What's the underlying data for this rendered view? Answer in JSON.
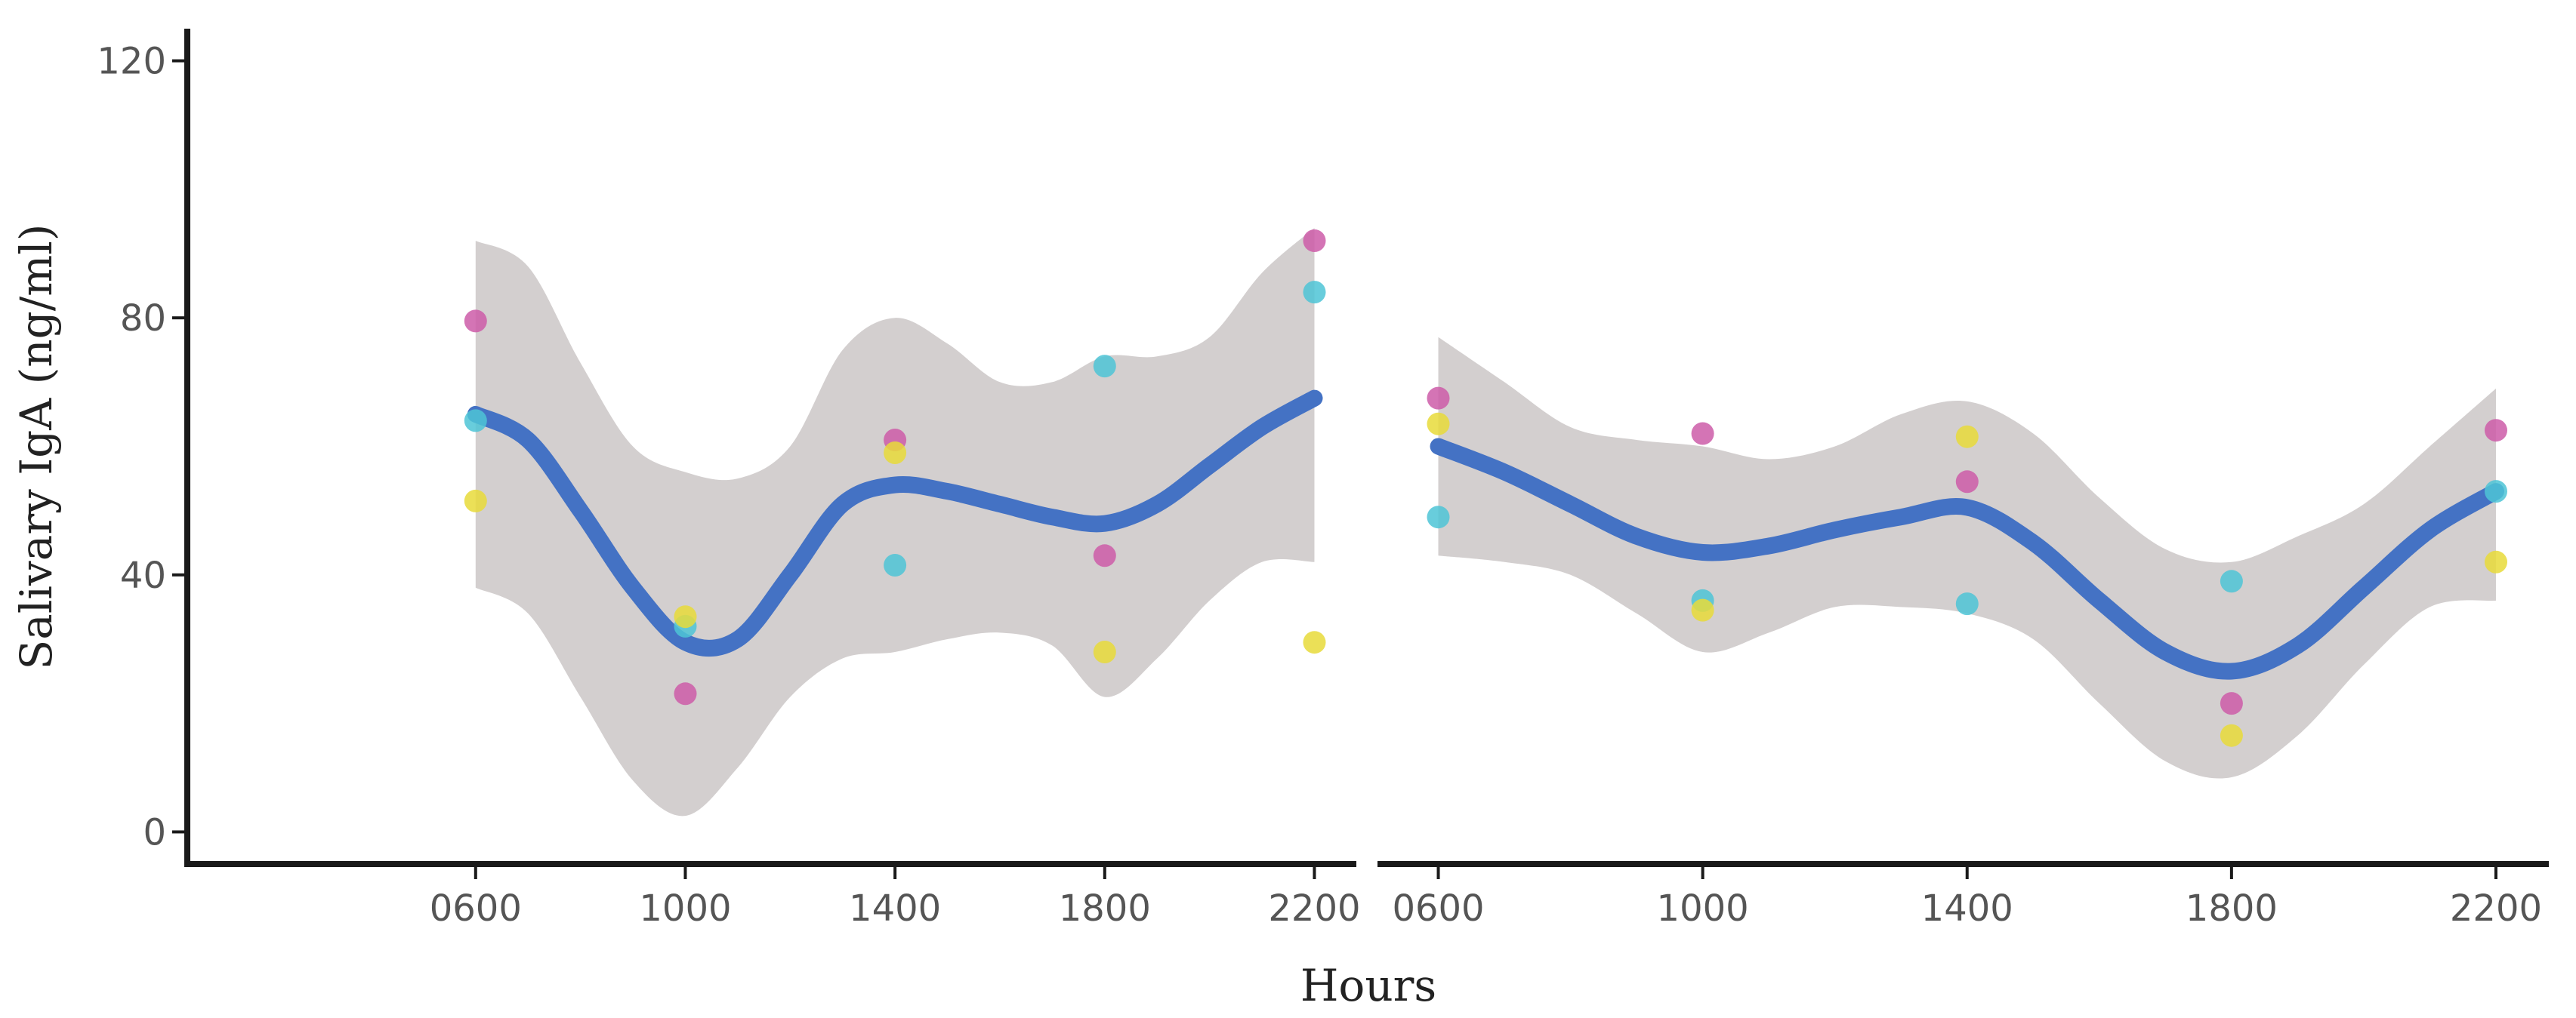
{
  "colors": {
    "smooth_line": "#4472C4",
    "ribbon": "#D3CFCF",
    "axis": "#1A1A1A",
    "group_magenta": "#CC5CA8",
    "group_cyan": "#4EC4D6",
    "group_yellow": "#E8DB3A"
  },
  "chart_data": [
    {
      "type": "scatter",
      "panel": "left",
      "x_tick_labels": [
        "0600",
        "1000",
        "1400",
        "1800",
        "2200"
      ],
      "y_ticks": [
        0,
        40,
        80,
        120
      ],
      "y_tick_labels": [
        "0",
        "40",
        "80",
        "120"
      ],
      "xlabel": "Hours",
      "ylabel": "Salivary IgA (ng/ml)",
      "ylim": [
        -5,
        125
      ],
      "xlim": [
        0.5,
        22.8
      ],
      "grid": false,
      "series": [
        {
          "color": "#CC5CA8",
          "points": [
            {
              "x": 6,
              "y": 79.5
            },
            {
              "x": 10,
              "y": 21.5
            },
            {
              "x": 14,
              "y": 61
            },
            {
              "x": 18,
              "y": 43
            },
            {
              "x": 22,
              "y": 92
            }
          ]
        },
        {
          "color": "#4EC4D6",
          "points": [
            {
              "x": 6,
              "y": 64
            },
            {
              "x": 10,
              "y": 32
            },
            {
              "x": 14,
              "y": 41.5
            },
            {
              "x": 18,
              "y": 72.5
            },
            {
              "x": 22,
              "y": 84
            }
          ]
        },
        {
          "color": "#E8DB3A",
          "points": [
            {
              "x": 6,
              "y": 51.5
            },
            {
              "x": 10,
              "y": 33.5
            },
            {
              "x": 14,
              "y": 59
            },
            {
              "x": 18,
              "y": 28
            },
            {
              "x": 22,
              "y": 29.5
            }
          ]
        }
      ],
      "smooth": {
        "x": [
          6,
          7,
          8,
          9,
          10,
          11,
          12,
          13,
          14,
          15,
          16,
          17,
          18,
          19,
          20,
          21,
          22
        ],
        "y": [
          65,
          61,
          50,
          38,
          29.5,
          30,
          40,
          51,
          54,
          53,
          51,
          49,
          48,
          51,
          57,
          63,
          67.5
        ],
        "lower": [
          38,
          34,
          21,
          8,
          2.5,
          10,
          21,
          27,
          28,
          30,
          31,
          29,
          21,
          27,
          36,
          42,
          42
        ],
        "upper": [
          92,
          88,
          73,
          60,
          56,
          55,
          60,
          75,
          80,
          76,
          70,
          70,
          74,
          74,
          77,
          87,
          94
        ]
      }
    },
    {
      "type": "scatter",
      "panel": "right",
      "x_tick_labels": [
        "0600",
        "1000",
        "1400",
        "1800",
        "2200"
      ],
      "xlabel": "Hours",
      "ylim": [
        -5,
        125
      ],
      "xlim": [
        5.08,
        22.8
      ],
      "grid": false,
      "series": [
        {
          "color": "#CC5CA8",
          "points": [
            {
              "x": 6,
              "y": 67.5
            },
            {
              "x": 10,
              "y": 62
            },
            {
              "x": 14,
              "y": 54.5
            },
            {
              "x": 18,
              "y": 20
            },
            {
              "x": 22,
              "y": 62.5
            }
          ]
        },
        {
          "color": "#4EC4D6",
          "points": [
            {
              "x": 6,
              "y": 49
            },
            {
              "x": 10,
              "y": 36
            },
            {
              "x": 14,
              "y": 35.5
            },
            {
              "x": 18,
              "y": 39
            },
            {
              "x": 22,
              "y": 53
            }
          ]
        },
        {
          "color": "#E8DB3A",
          "points": [
            {
              "x": 6,
              "y": 63.5
            },
            {
              "x": 10,
              "y": 34.5
            },
            {
              "x": 14,
              "y": 61.5
            },
            {
              "x": 18,
              "y": 15
            },
            {
              "x": 22,
              "y": 42
            }
          ]
        }
      ],
      "smooth": {
        "x": [
          6,
          7,
          8,
          9,
          10,
          11,
          12,
          13,
          14,
          15,
          16,
          17,
          18,
          19,
          20,
          21,
          22
        ],
        "y": [
          60,
          56,
          51,
          46,
          43.5,
          44.5,
          47,
          49,
          50.5,
          45,
          36,
          28,
          25,
          29,
          38,
          47,
          53
        ],
        "lower": [
          43,
          42,
          40,
          34,
          28,
          31,
          35,
          35,
          34,
          30,
          20,
          11,
          8.5,
          15,
          26,
          35,
          36
        ],
        "upper": [
          77,
          70,
          63,
          61,
          60,
          58,
          60,
          65,
          67,
          62,
          52,
          44,
          42,
          46,
          51,
          60,
          69
        ]
      }
    }
  ]
}
